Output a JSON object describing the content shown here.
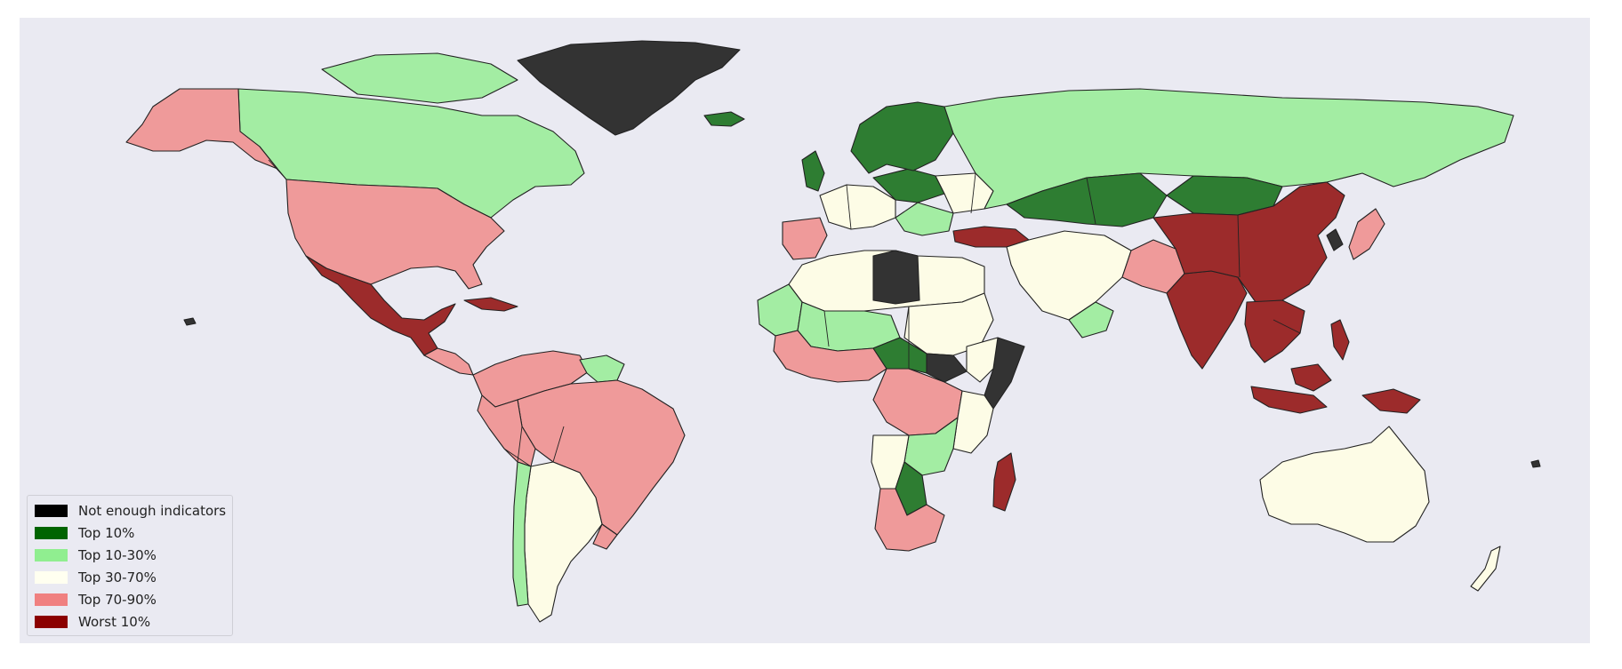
{
  "palette": {
    "not_enough": "#333333",
    "top10": "#2e7d32",
    "top10_30": "#a3eda3",
    "top30_70": "#fdfce6",
    "top70_90": "#ef9a9a",
    "worst10": "#9c2b2b",
    "ocean": "#eaeaf2"
  },
  "legend": {
    "items": [
      {
        "label": "Not enough indicators",
        "color": "#000000"
      },
      {
        "label": "Top 10%",
        "color": "#006400"
      },
      {
        "label": "Top 10-30%",
        "color": "#90ee90"
      },
      {
        "label": "Top 30-70%",
        "color": "#fffff0"
      },
      {
        "label": "Top 70-90%",
        "color": "#f08080"
      },
      {
        "label": "Worst 10%",
        "color": "#8b0000"
      }
    ]
  }
}
